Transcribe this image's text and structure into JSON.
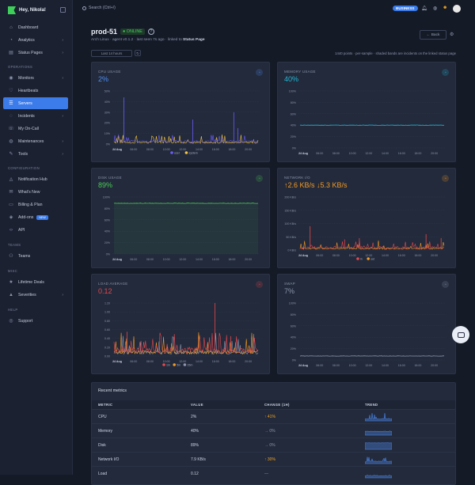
{
  "brand": {
    "greeting": "Hey, Nikola!"
  },
  "search": {
    "placeholder": "Search (Ctrl+/)"
  },
  "topbar": {
    "plan_badge": "BUSINESS"
  },
  "sidebar": {
    "items": [
      {
        "label": "Dashboard",
        "icon": "home-icon"
      },
      {
        "label": "Analytics",
        "icon": "analytics-icon",
        "chevron": true
      },
      {
        "label": "Status Pages",
        "icon": "status-pages-icon",
        "chevron": true
      }
    ],
    "sections": {
      "operations": "OPERATIONS",
      "configuration": "CONFIGURATION",
      "teams": "TEAMS",
      "misc": "MISC",
      "help": "HELP"
    },
    "operations": [
      {
        "label": "Monitors",
        "icon": "monitor-icon",
        "chevron": true
      },
      {
        "label": "Heartbeats",
        "icon": "heartbeat-icon"
      },
      {
        "label": "Servers",
        "icon": "servers-icon",
        "active": true
      },
      {
        "label": "Incidents",
        "icon": "incidents-icon",
        "chevron": true
      },
      {
        "label": "My On-Call",
        "icon": "on-call-icon"
      },
      {
        "label": "Maintenances",
        "icon": "maintenance-icon",
        "chevron": true
      },
      {
        "label": "Tools",
        "icon": "tools-icon",
        "chevron": true
      }
    ],
    "configuration": [
      {
        "label": "Notification Hub",
        "icon": "bell-icon"
      },
      {
        "label": "What's New",
        "icon": "megaphone-icon"
      },
      {
        "label": "Billing & Plan",
        "icon": "billing-icon"
      },
      {
        "label": "Add-ons",
        "icon": "addons-icon",
        "badge": "NEW"
      },
      {
        "label": "API",
        "icon": "api-icon"
      }
    ],
    "teams": [
      {
        "label": "Teams",
        "icon": "teams-icon"
      }
    ],
    "misc": [
      {
        "label": "Lifetime Deals",
        "icon": "deals-icon"
      },
      {
        "label": "Severities",
        "icon": "severity-icon",
        "chevron": true
      }
    ],
    "help": [
      {
        "label": "Support",
        "icon": "support-icon"
      }
    ]
  },
  "server": {
    "name": "prod-51",
    "status": "● ONLINE",
    "os": "Arch Linux",
    "agent": "agent v0.1.2",
    "last_seen": "last seen 7s ago",
    "linked_prefix": "linked to",
    "linked_target": "Status Page"
  },
  "controls": {
    "back_label": "← Back",
    "range_label": "Last 14 hours",
    "points_note": "1440 points · per-sample · shaded bands are incidents on the linked status page"
  },
  "cards": {
    "cpu": {
      "title": "CPU USAGE",
      "value": "2%",
      "color": "#4f8df5"
    },
    "memory": {
      "title": "MEMORY USAGE",
      "value": "40%",
      "color": "#22b8d8"
    },
    "disk": {
      "title": "DISK USAGE",
      "value": "89%",
      "color": "#4ccb55"
    },
    "network": {
      "title": "NETWORK I/O",
      "value": "↑2.6 KB/s ↓5.3 KB/s",
      "color": "#f59a23"
    },
    "load": {
      "title": "LOAD AVERAGE",
      "value": "0.12",
      "color": "#e5484d"
    },
    "swap": {
      "title": "SWAP",
      "value": "7%",
      "color": "#8d96ad"
    }
  },
  "chart_data": [
    {
      "type": "line",
      "id": "cpu",
      "x": [
        "24 Aug",
        "05:00",
        "06:00",
        "07:00",
        "08:00",
        "09:00",
        "10:00",
        "11:00",
        "12:00",
        "13:00",
        "14:00",
        "15:00",
        "16:00",
        "17:00",
        "18:00",
        "19:00",
        "20:00",
        "21:00"
      ],
      "y_ticks": [
        "0%",
        "10%",
        "20%",
        "30%",
        "40%",
        "50%"
      ],
      "ylim": [
        0,
        50
      ],
      "series": [
        {
          "name": "user",
          "color": "#6b5cf6"
        },
        {
          "name": "system",
          "color": "#f5c542"
        }
      ],
      "legend": "bottom",
      "spikes": [
        {
          "x": "05:00",
          "y": 44
        },
        {
          "x": "13:00",
          "y": 23
        },
        {
          "x": "18:00",
          "y": 30
        },
        {
          "x": "19:00",
          "y": 15
        }
      ],
      "baseline": 2
    },
    {
      "type": "line",
      "id": "memory",
      "x": [
        "24 Aug",
        "05:00",
        "06:00",
        "07:00",
        "08:00",
        "09:00",
        "10:00",
        "11:00",
        "12:00",
        "13:00",
        "14:00",
        "15:00",
        "16:00",
        "17:00",
        "18:00",
        "19:00",
        "20:00",
        "21:00"
      ],
      "y_ticks": [
        "0%",
        "20%",
        "40%",
        "60%",
        "80%",
        "100%"
      ],
      "ylim": [
        0,
        100
      ],
      "series": [
        {
          "name": "used",
          "value": 40
        }
      ]
    },
    {
      "type": "area",
      "id": "disk",
      "x": [
        "24 Aug",
        "05:00",
        "06:00",
        "07:00",
        "08:00",
        "09:00",
        "10:00",
        "11:00",
        "12:00",
        "13:00",
        "14:00",
        "15:00",
        "16:00",
        "17:00",
        "18:00",
        "19:00",
        "20:00",
        "21:00"
      ],
      "y_ticks": [
        "0%",
        "20%",
        "40%",
        "60%",
        "80%",
        "100%"
      ],
      "ylim": [
        0,
        100
      ],
      "series": [
        {
          "name": "used",
          "value": 89
        }
      ]
    },
    {
      "type": "line",
      "id": "network",
      "x": [
        "24 Aug",
        "05:00",
        "06:00",
        "07:00",
        "08:00",
        "09:00",
        "10:00",
        "11:00",
        "12:00",
        "13:00",
        "14:00",
        "15:00",
        "16:00",
        "17:00",
        "18:00",
        "19:00",
        "20:00",
        "21:00"
      ],
      "y_ticks": [
        "0 KB/s",
        "50 KB/s",
        "100 KB/s",
        "150 KB/s",
        "200 KB/s"
      ],
      "ylim": [
        0,
        200
      ],
      "series": [
        {
          "name": "in",
          "color": "#e5484d"
        },
        {
          "name": "out",
          "color": "#f59a23"
        }
      ],
      "legend": "bottom",
      "spikes": [
        {
          "x": "05:00",
          "y": 90
        },
        {
          "x": "09:00",
          "y": 40
        },
        {
          "x": "11:00",
          "y": 45
        },
        {
          "x": "19:00",
          "y": 60
        },
        {
          "x": "21:00",
          "y": 45
        }
      ],
      "baseline": 8
    },
    {
      "type": "line",
      "id": "load",
      "x": [
        "24 Aug",
        "05:00",
        "06:00",
        "07:00",
        "08:00",
        "09:00",
        "10:00",
        "11:00",
        "12:00",
        "13:00",
        "14:00",
        "15:00",
        "16:00",
        "17:00",
        "18:00",
        "19:00",
        "20:00",
        "21:00"
      ],
      "y_ticks": [
        "0.00",
        "0.20",
        "0.40",
        "0.60",
        "0.80",
        "1.00",
        "1.20"
      ],
      "ylim": [
        0,
        1.2
      ],
      "series": [
        {
          "name": "1m",
          "color": "#e5484d"
        },
        {
          "name": "5m",
          "color": "#f59a23"
        },
        {
          "name": "15m",
          "color": "#8d96ad"
        }
      ],
      "legend": "bottom",
      "spikes": [
        {
          "x": "05:00",
          "y": 0.55
        },
        {
          "x": "16:00",
          "y": 1.2
        },
        {
          "x": "18:00",
          "y": 0.45
        }
      ],
      "baseline": 0.12
    },
    {
      "type": "line",
      "id": "swap",
      "x": [
        "24 Aug",
        "05:00",
        "06:00",
        "07:00",
        "08:00",
        "09:00",
        "10:00",
        "11:00",
        "12:00",
        "13:00",
        "14:00",
        "15:00",
        "16:00",
        "17:00",
        "18:00",
        "19:00",
        "20:00",
        "21:00"
      ],
      "y_ticks": [
        "0%",
        "20%",
        "40%",
        "60%",
        "80%",
        "100%"
      ],
      "ylim": [
        0,
        100
      ],
      "series": [
        {
          "name": "used",
          "value": 7
        }
      ]
    }
  ],
  "metrics_table": {
    "title": "Recent metrics",
    "headers": [
      "METRIC",
      "VALUE",
      "CHANGE (1H)",
      "TREND"
    ],
    "rows": [
      {
        "metric": "CPU",
        "value": "2%",
        "change": "↑ 41%",
        "dir": "up"
      },
      {
        "metric": "Memory",
        "value": "40%",
        "change": "→ 0%",
        "dir": "flat"
      },
      {
        "metric": "Disk",
        "value": "89%",
        "change": "→ 0%",
        "dir": "flat"
      },
      {
        "metric": "Network I/O",
        "value": "7.9 KB/s",
        "change": "↑ 30%",
        "dir": "up"
      },
      {
        "metric": "Load",
        "value": "0.12",
        "change": "—",
        "dir": "flat"
      }
    ]
  }
}
